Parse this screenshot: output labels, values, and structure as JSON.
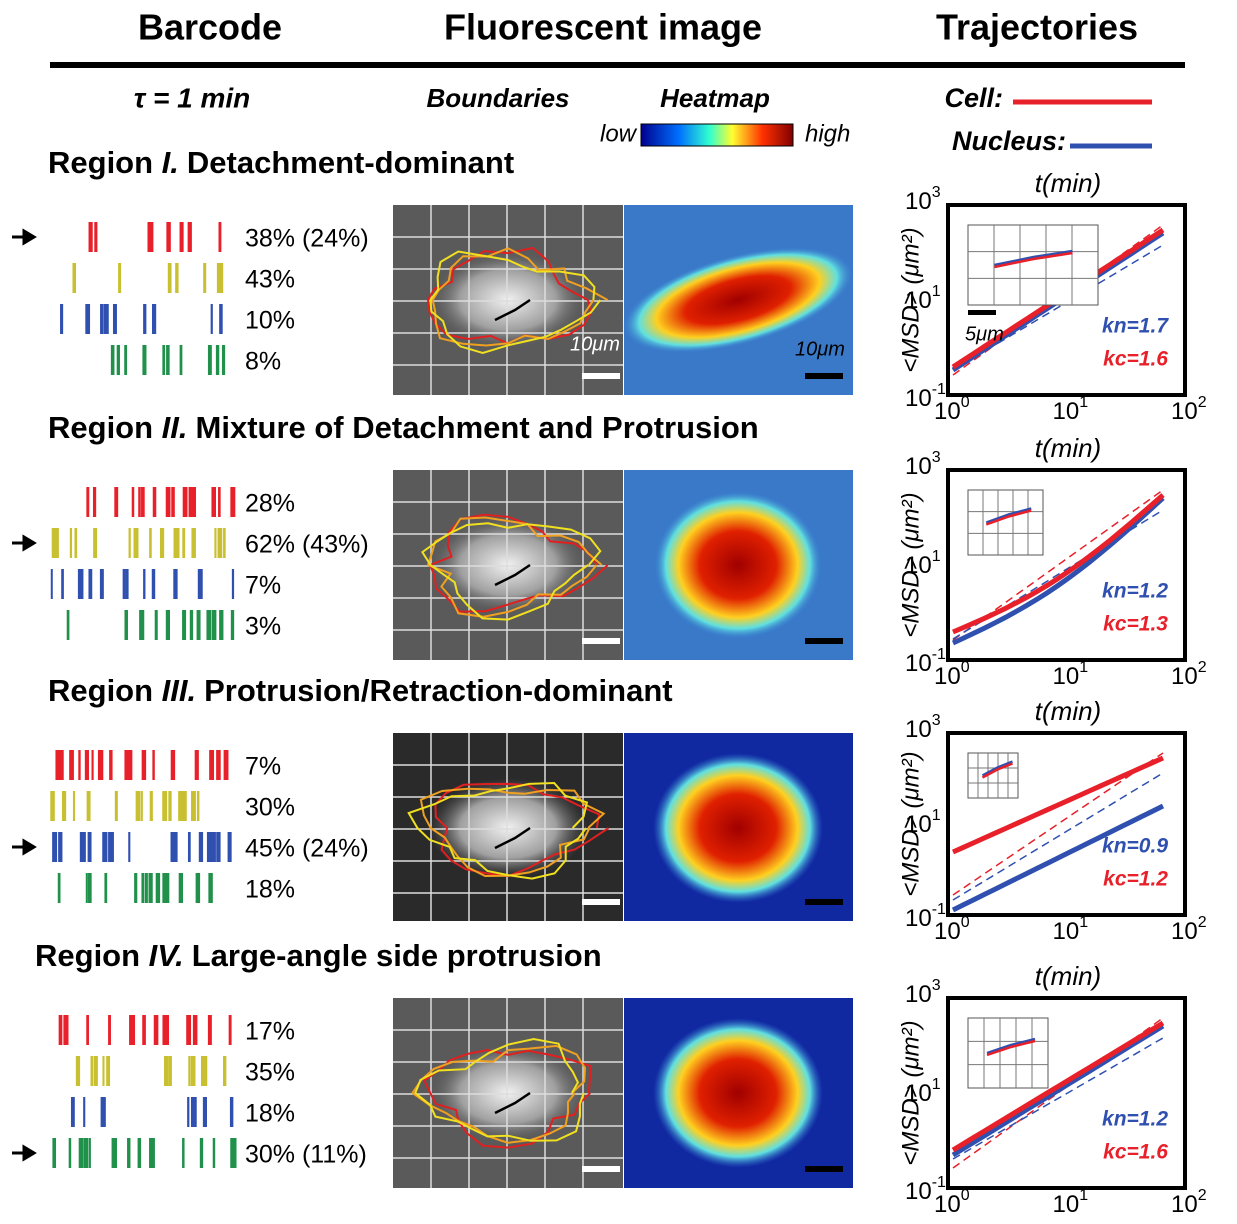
{
  "header": {
    "columns": [
      "Barcode",
      "Fluorescent image",
      "Trajectories"
    ]
  },
  "subheader": {
    "tau": "τ = 1 min",
    "boundaries": "Boundaries",
    "heatmap": "Heatmap",
    "low": "low",
    "high": "high",
    "cell": "Cell:",
    "nucleus": "Nucleus:"
  },
  "plot_axes": {
    "xlabel": "t(min)",
    "ylabel": "<MSD> (μm²)",
    "base": "10",
    "x_exponents": [
      "0",
      "1",
      "2"
    ],
    "y_exponents": [
      "3",
      "1",
      "-1"
    ]
  },
  "regions": [
    {
      "prefix": "Region ",
      "numeral": "I.",
      "title": "Detachment-dominant",
      "percentages": [
        "38% (24%)",
        "43%",
        "10%",
        "8%"
      ],
      "arrow_row": 0,
      "scale_gray": "10μm",
      "scale_heat": "10μm",
      "inset_scale": "5μm",
      "kn": "kn=1.7",
      "kc": "kc=1.6"
    },
    {
      "prefix": "Region ",
      "numeral": "II.",
      "title": "Mixture of Detachment and Protrusion",
      "percentages": [
        "28%",
        "62% (43%)",
        "7%",
        "3%"
      ],
      "arrow_row": 1,
      "kn": "kn=1.2",
      "kc": "kc=1.3"
    },
    {
      "prefix": "Region ",
      "numeral": "III.",
      "title": "Protrusion/Retraction-dominant",
      "percentages": [
        "7%",
        "30%",
        "45% (24%)",
        "18%"
      ],
      "arrow_row": 2,
      "kn": "kn=0.9",
      "kc": "kc=1.2"
    },
    {
      "prefix": "Region ",
      "numeral": "IV.",
      "title": "Large-angle side protrusion",
      "percentages": [
        "17%",
        "35%",
        "18%",
        "30% (11%)"
      ],
      "arrow_row": 3,
      "kn": "kn=1.2",
      "kc": "kc=1.6"
    }
  ]
}
